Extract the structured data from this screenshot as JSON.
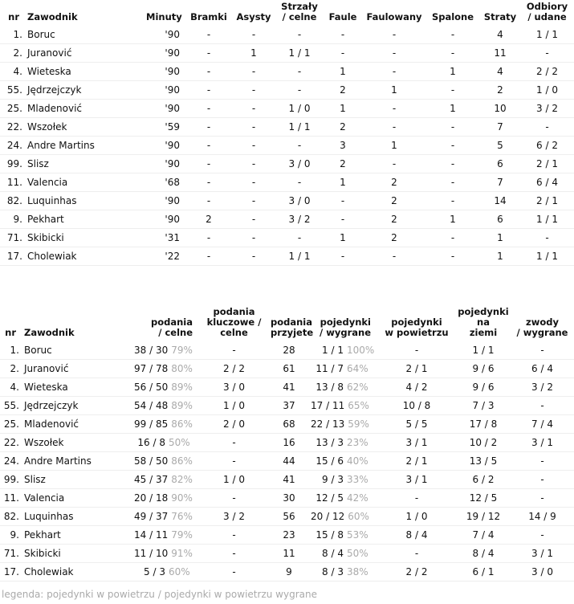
{
  "table1": {
    "headers": [
      "nr",
      "Zawodnik",
      "Minuty",
      "Bramki",
      "Asysty",
      "Strzały\n/ celne",
      "Faule",
      "Faulowany",
      "Spalone",
      "Straty",
      "Odbiory\n/ udane"
    ],
    "rows": [
      [
        "1.",
        "Boruc",
        "'90",
        "-",
        "-",
        "-",
        "-",
        "-",
        "-",
        "4",
        "1 / 1"
      ],
      [
        "2.",
        "Juranović",
        "'90",
        "-",
        "1",
        "1 / 1",
        "-",
        "-",
        "-",
        "11",
        "-"
      ],
      [
        "4.",
        "Wieteska",
        "'90",
        "-",
        "-",
        "-",
        "1",
        "-",
        "1",
        "4",
        "2 / 2"
      ],
      [
        "55.",
        "Jędrzejczyk",
        "'90",
        "-",
        "-",
        "-",
        "2",
        "1",
        "-",
        "2",
        "1 / 0"
      ],
      [
        "25.",
        "Mladenović",
        "'90",
        "-",
        "-",
        "1 / 0",
        "1",
        "-",
        "1",
        "10",
        "3 / 2"
      ],
      [
        "22.",
        "Wszołek",
        "'59",
        "-",
        "-",
        "1 / 1",
        "2",
        "-",
        "-",
        "7",
        "-"
      ],
      [
        "24.",
        "Andre Martins",
        "'90",
        "-",
        "-",
        "-",
        "3",
        "1",
        "-",
        "5",
        "6 / 2"
      ],
      [
        "99.",
        "Slisz",
        "'90",
        "-",
        "-",
        "3 / 0",
        "2",
        "-",
        "-",
        "6",
        "2 / 1"
      ],
      [
        "11.",
        "Valencia",
        "'68",
        "-",
        "-",
        "-",
        "1",
        "2",
        "-",
        "7",
        "6 / 4"
      ],
      [
        "82.",
        "Luquinhas",
        "'90",
        "-",
        "-",
        "3 / 0",
        "-",
        "2",
        "-",
        "14",
        "2 / 1"
      ],
      [
        "9.",
        "Pekhart",
        "'90",
        "2",
        "-",
        "3 / 2",
        "-",
        "2",
        "1",
        "6",
        "1 / 1"
      ],
      [
        "71.",
        "Skibicki",
        "'31",
        "-",
        "-",
        "-",
        "1",
        "2",
        "-",
        "1",
        "-"
      ],
      [
        "17.",
        "Cholewiak",
        "'22",
        "-",
        "-",
        "1 / 1",
        "-",
        "-",
        "-",
        "1",
        "1 / 1"
      ]
    ]
  },
  "table2": {
    "headers": [
      "nr",
      "Zawodnik",
      "podania\n/ celne",
      "podania\nkluczowe /\ncelne",
      "podania\nprzyjete",
      "pojedynki\n/ wygrane",
      "pojedynki\nw powietrzu",
      "pojedynki na\nziemi",
      "zwody\n/ wygrane"
    ],
    "rows": [
      [
        "1.",
        "Boruc",
        [
          "38 / 30",
          "79%"
        ],
        "-",
        "28",
        [
          "1 / 1",
          "100%"
        ],
        "-",
        "1 / 1",
        "-"
      ],
      [
        "2.",
        "Juranović",
        [
          "97 / 78",
          "80%"
        ],
        "2 / 2",
        "61",
        [
          "11 / 7",
          "64%"
        ],
        "2 / 1",
        "9 / 6",
        "6 / 4"
      ],
      [
        "4.",
        "Wieteska",
        [
          "56 / 50",
          "89%"
        ],
        "3 / 0",
        "41",
        [
          "13 / 8",
          "62%"
        ],
        "4 / 2",
        "9 / 6",
        "3 / 2"
      ],
      [
        "55.",
        "Jędrzejczyk",
        [
          "54 / 48",
          "89%"
        ],
        "1 / 0",
        "37",
        [
          "17 / 11",
          "65%"
        ],
        "10 / 8",
        "7 / 3",
        "-"
      ],
      [
        "25.",
        "Mladenović",
        [
          "99 / 85",
          "86%"
        ],
        "2 / 0",
        "68",
        [
          "22 / 13",
          "59%"
        ],
        "5 / 5",
        "17 / 8",
        "7 / 4"
      ],
      [
        "22.",
        "Wszołek",
        [
          "16 / 8",
          "50%"
        ],
        "-",
        "16",
        [
          "13 / 3",
          "23%"
        ],
        "3 / 1",
        "10 / 2",
        "3 / 1"
      ],
      [
        "24.",
        "Andre Martins",
        [
          "58 / 50",
          "86%"
        ],
        "-",
        "44",
        [
          "15 / 6",
          "40%"
        ],
        "2 / 1",
        "13 / 5",
        "-"
      ],
      [
        "99.",
        "Slisz",
        [
          "45 / 37",
          "82%"
        ],
        "1 / 0",
        "41",
        [
          "9 / 3",
          "33%"
        ],
        "3 / 1",
        "6 / 2",
        "-"
      ],
      [
        "11.",
        "Valencia",
        [
          "20 / 18",
          "90%"
        ],
        "-",
        "30",
        [
          "12 / 5",
          "42%"
        ],
        "-",
        "12 / 5",
        "-"
      ],
      [
        "82.",
        "Luquinhas",
        [
          "49 / 37",
          "76%"
        ],
        "3 / 2",
        "56",
        [
          "20 / 12",
          "60%"
        ],
        "1 / 0",
        "19 / 12",
        "14 / 9"
      ],
      [
        "9.",
        "Pekhart",
        [
          "14 / 11",
          "79%"
        ],
        "-",
        "23",
        [
          "15 / 8",
          "53%"
        ],
        "8 / 4",
        "7 / 4",
        "-"
      ],
      [
        "71.",
        "Skibicki",
        [
          "11 / 10",
          "91%"
        ],
        "-",
        "11",
        [
          "8 / 4",
          "50%"
        ],
        "-",
        "8 / 4",
        "3 / 1"
      ],
      [
        "17.",
        "Cholewiak",
        [
          "5 / 3",
          "60%"
        ],
        "-",
        "9",
        [
          "8 / 3",
          "38%"
        ],
        "2 / 2",
        "6 / 1",
        "3 / 0"
      ]
    ]
  },
  "legend": "legenda: pojedynki w powietrzu / pojedynki w powietrzu wygrane"
}
